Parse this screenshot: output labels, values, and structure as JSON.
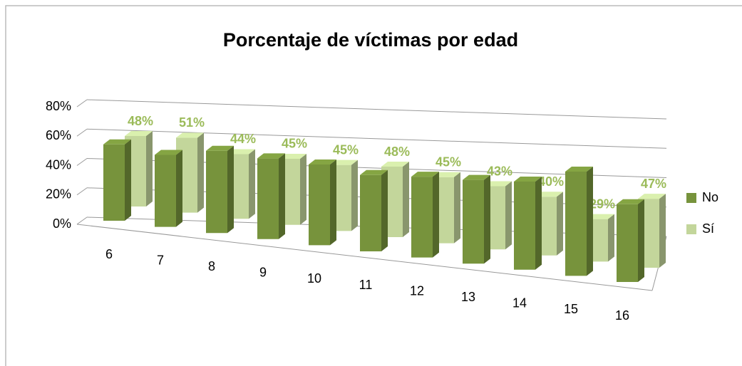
{
  "chart_data": {
    "type": "bar3d",
    "title": "Porcentaje de víctimas por edad",
    "categories": [
      "6",
      "7",
      "8",
      "9",
      "10",
      "11",
      "12",
      "13",
      "14",
      "15",
      "16"
    ],
    "series": [
      {
        "name": "No",
        "color": "#77933c",
        "values": [
          52,
          49,
          56,
          55,
          55,
          52,
          55,
          57,
          60,
          71,
          53
        ]
      },
      {
        "name": "Sí",
        "color": "#c3d69b",
        "values": [
          48,
          51,
          44,
          45,
          45,
          48,
          45,
          43,
          40,
          29,
          47
        ],
        "value_labels": [
          "48%",
          "51%",
          "44%",
          "45%",
          "45%",
          "48%",
          "45%",
          "43%",
          "40%",
          "29%",
          "47%"
        ]
      }
    ],
    "ylim": [
      0,
      80
    ],
    "yticks": [
      {
        "value": 0,
        "label": "0%"
      },
      {
        "value": 20,
        "label": "20%"
      },
      {
        "value": 40,
        "label": "40%"
      },
      {
        "value": 60,
        "label": "60%"
      },
      {
        "value": 80,
        "label": "80%"
      }
    ],
    "grid": true,
    "legend": "right"
  }
}
